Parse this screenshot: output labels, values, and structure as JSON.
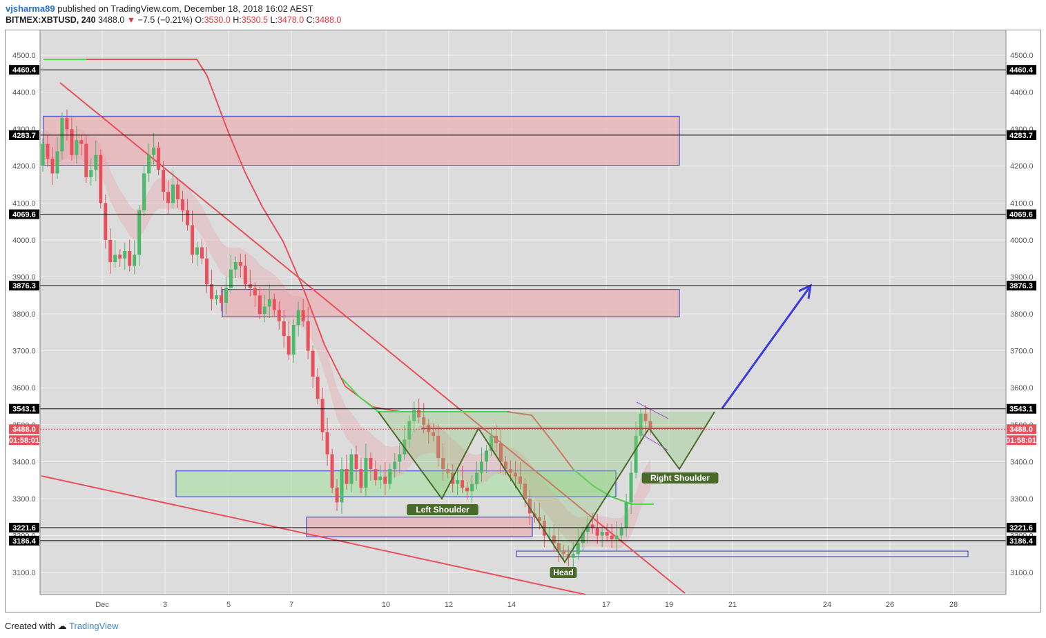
{
  "header": {
    "publisher": "vjsharma89",
    "published_text": "published on TradingView.com, December 18, 2018 16:02 AEST",
    "symbol": "BITMEX:XBTUSD, 240",
    "last": "3488.0",
    "change": "−7.5 (−0.21%)",
    "o_label": "O:",
    "o": "3530.0",
    "h_label": "H:",
    "h": "3530.5",
    "l_label": "L:",
    "l": "3478.0",
    "c_label": "C:",
    "c": "3488.0"
  },
  "footer": {
    "created_with": "Created with",
    "brand": "TradingView"
  },
  "chart_data": {
    "type": "candlestick",
    "title": "",
    "ylim": [
      3030,
      4550
    ],
    "y_ticks": [
      "3100.0",
      "3200.0",
      "3300.0",
      "3400.0",
      "3500.0",
      "3600.0",
      "3700.0",
      "3800.0",
      "3900.0",
      "4000.0",
      "4100.0",
      "4200.0",
      "4300.0",
      "4400.0",
      "4500.0"
    ],
    "x_ticks": [
      "Dec",
      "3",
      "5",
      "7",
      "10",
      "12",
      "14",
      "17",
      "19",
      "21",
      "24",
      "26",
      "28"
    ],
    "grid": true,
    "horizontal_levels": [
      "4460.4",
      "4283.7",
      "4069.6",
      "3876.3",
      "3543.1",
      "3221.6",
      "3186.4"
    ],
    "current_price_label": "3488.0",
    "countdown_label": "01:58:01",
    "pattern_labels": [
      "Left Shoulder",
      "Head",
      "Right Shoulder"
    ],
    "colors": {
      "up": "#4cb86a",
      "down": "#e8505b",
      "level_line": "#000000",
      "zone_border": "#2233cc",
      "supply_fill": "#e8b4b8",
      "demand_fill": "#b4e0b0",
      "projection_arrow": "#3a3ae0",
      "pattern_line": "#4a6a2a"
    }
  }
}
